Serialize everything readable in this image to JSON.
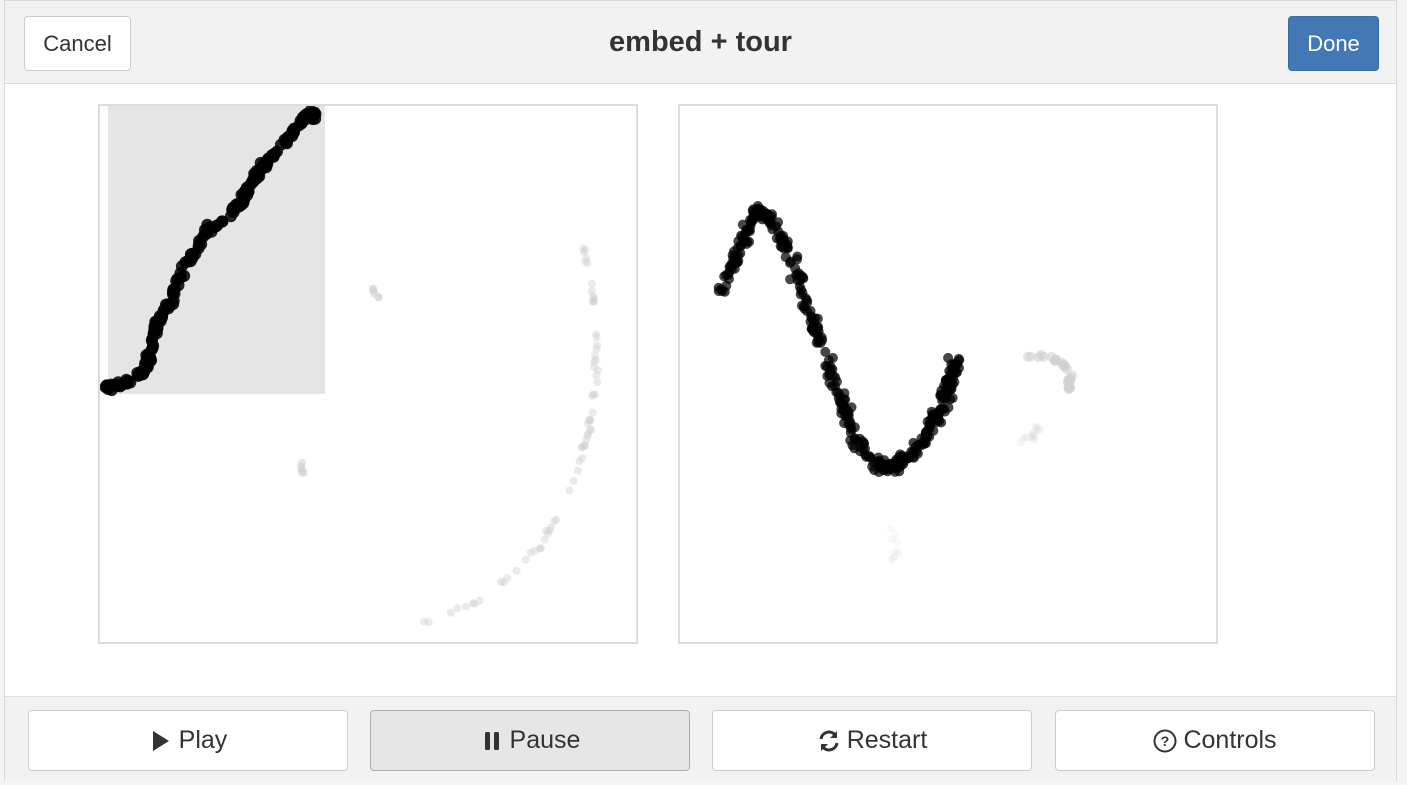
{
  "title": "embed + tour",
  "buttons": {
    "cancel": "Cancel",
    "done": "Done",
    "play": "Play",
    "pause": "Pause",
    "restart": "Restart",
    "controls": "Controls"
  },
  "icons": {
    "play": "play-icon",
    "pause": "pause-icon",
    "restart": "refresh-icon",
    "controls": "question-circle-icon"
  },
  "colors": {
    "done_button": "#4178b5",
    "brush": "#e5e5e5",
    "points_selected": "#000000",
    "points_unselected": "#d0d0d0"
  }
}
